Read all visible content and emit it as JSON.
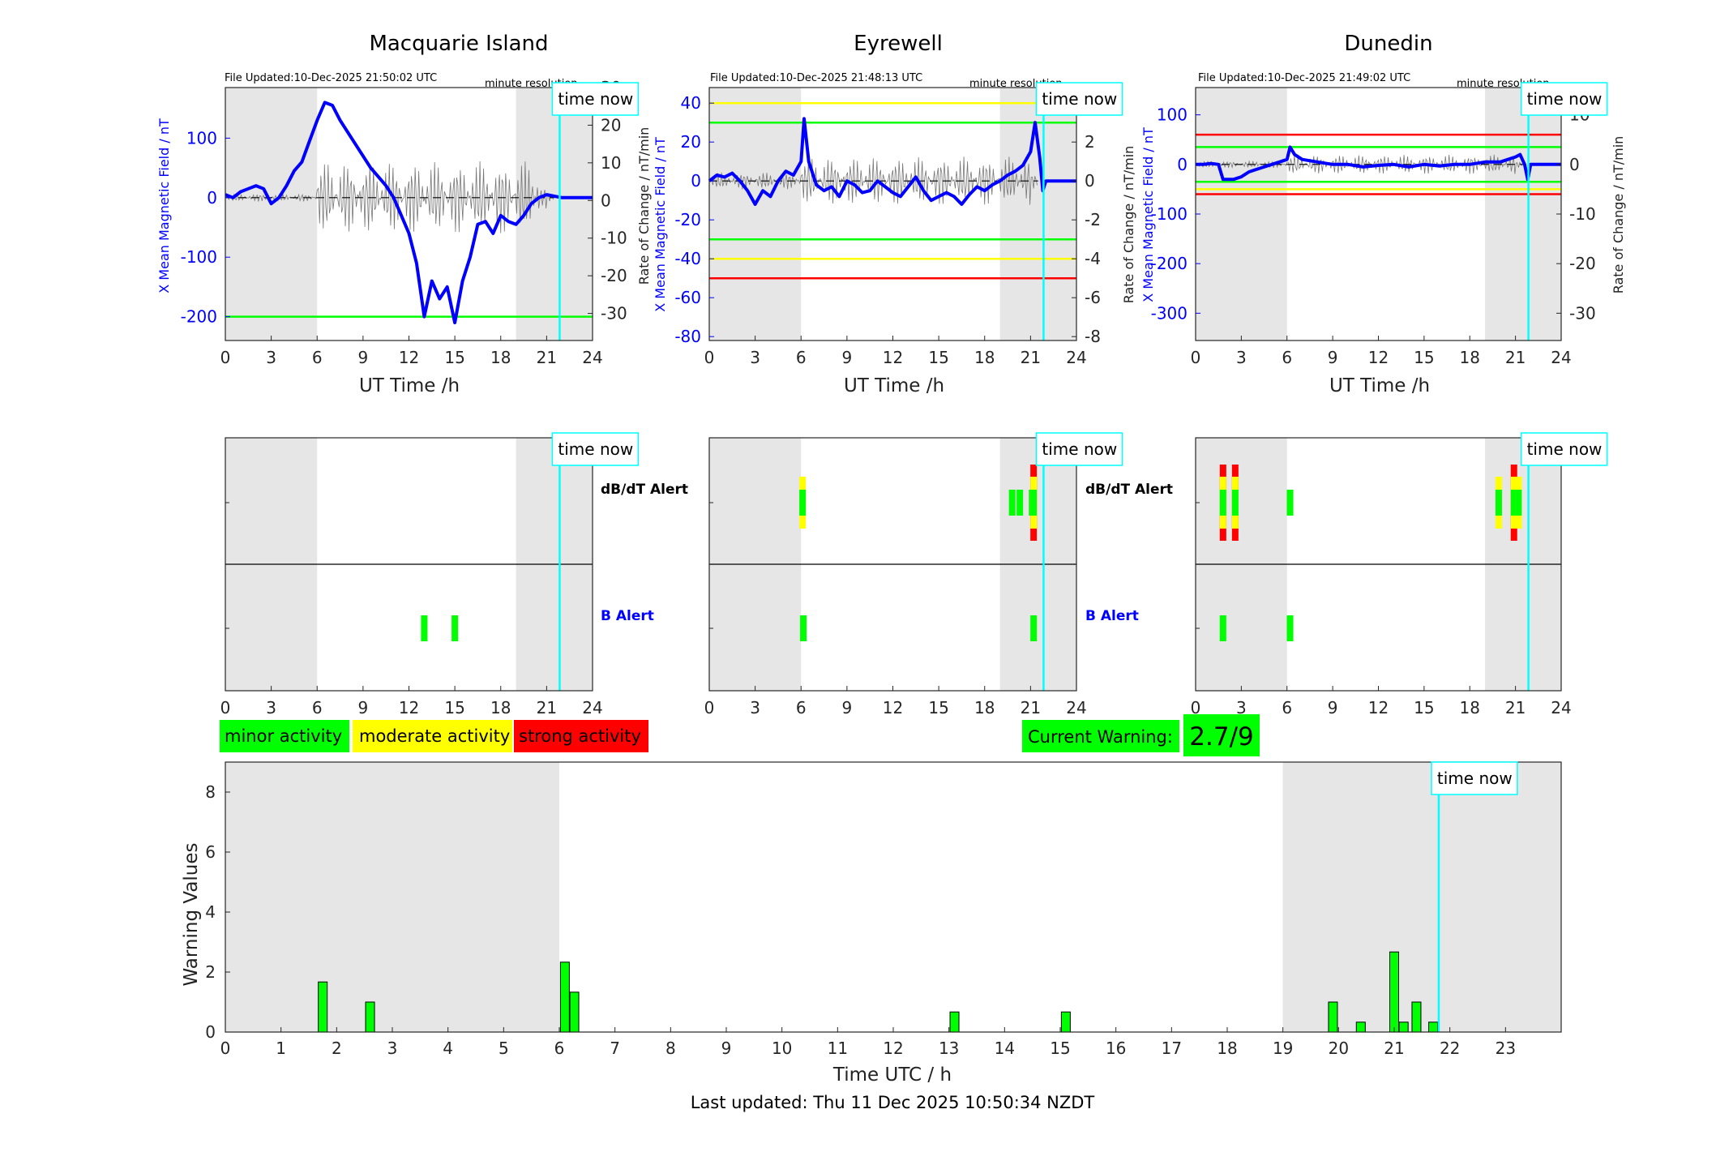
{
  "footer": {
    "last_updated": "Last updated: Thu 11 Dec 2025 10:50:34 NZDT"
  },
  "labels": {
    "time_now": "time now",
    "minute_resolution": "minute resolution",
    "ut_time": "UT Time /h",
    "y_left": "X Mean Magnetic Field / nT",
    "y_right": "Rate of Change / nT/min",
    "dbdt_alert": "dB/dT Alert",
    "b_alert": "B Alert"
  },
  "legend": {
    "minor": "minor activity",
    "moderate": "moderate activity",
    "strong": "strong activity",
    "current_warning_label": "Current Warning:",
    "current_warning_value": "2.7/9"
  },
  "colors": {
    "minor": "#00ff00",
    "moderate": "#ffff00",
    "strong": "#ff0000",
    "field_line": "#0000ff",
    "time_now_line": "#00ffff",
    "night_shade": "#e6e6e6"
  },
  "chart_data": [
    {
      "type": "line",
      "title": "Macquarie Island",
      "file_updated": "File Updated:10-Dec-2025 21:50:02 UTC",
      "xlabel": "UT Time /h",
      "ylabel": "X Mean Magnetic Field / nT",
      "ylabel_right": "Rate of Change / nT/min",
      "xlim": [
        0,
        24
      ],
      "ylim": [
        -240,
        185
      ],
      "ylim_right": [
        -37.2,
        30
      ],
      "yticks": [
        -200,
        -100,
        0,
        100
      ],
      "yticks_right": [
        -30,
        -20,
        -10,
        0,
        10,
        20,
        30
      ],
      "xticks": [
        0,
        3,
        6,
        9,
        12,
        15,
        18,
        21,
        24
      ],
      "night_shading": [
        [
          0,
          6
        ],
        [
          19,
          24
        ]
      ],
      "time_now": 21.85,
      "thresholds": [
        {
          "value": -200,
          "color": "green"
        }
      ],
      "series": [
        {
          "x": [
            0,
            0.5,
            1,
            1.5,
            2,
            2.5,
            3,
            3.5,
            4,
            4.5,
            5,
            5.5,
            6,
            6.5,
            7,
            7.5,
            8,
            8.5,
            9,
            9.5,
            10,
            10.5,
            11,
            11.5,
            12,
            12.5,
            13,
            13.5,
            14,
            14.5,
            15,
            15.5,
            16,
            16.5,
            17,
            17.5,
            18,
            18.5,
            19,
            19.5,
            20,
            20.5,
            21,
            22,
            24
          ],
          "y": [
            5,
            0,
            10,
            15,
            20,
            15,
            -10,
            0,
            20,
            45,
            60,
            95,
            130,
            160,
            155,
            130,
            110,
            90,
            70,
            50,
            35,
            20,
            0,
            -30,
            -60,
            -110,
            -200,
            -140,
            -170,
            -150,
            -210,
            -140,
            -100,
            -45,
            -40,
            -60,
            -30,
            -40,
            -45,
            -30,
            -10,
            0,
            5,
            0,
            0
          ]
        }
      ]
    },
    {
      "type": "line",
      "title": "Eyrewell",
      "file_updated": "File Updated:10-Dec-2025 21:48:13 UTC",
      "xlabel": "UT Time /h",
      "ylabel": "X Mean Magnetic Field / nT",
      "ylabel_right": "Rate of Change / nT/min",
      "xlim": [
        0,
        24
      ],
      "ylim": [
        -82,
        48
      ],
      "ylim_right": [
        -8.2,
        4.8
      ],
      "yticks": [
        -80,
        -60,
        -40,
        -20,
        0,
        20,
        40
      ],
      "yticks_right": [
        -8,
        -6,
        -4,
        -2,
        0,
        2,
        4
      ],
      "xticks": [
        0,
        3,
        6,
        9,
        12,
        15,
        18,
        21,
        24
      ],
      "night_shading": [
        [
          0,
          6
        ],
        [
          19,
          24
        ]
      ],
      "time_now": 21.85,
      "thresholds": [
        {
          "value": 40,
          "color": "yellow"
        },
        {
          "value": 30,
          "color": "green"
        },
        {
          "value": -30,
          "color": "green"
        },
        {
          "value": -40,
          "color": "yellow"
        },
        {
          "value": -50,
          "color": "red"
        }
      ],
      "series": [
        {
          "x": [
            0,
            0.5,
            1,
            1.5,
            2,
            2.5,
            3,
            3.5,
            4,
            4.5,
            5,
            5.5,
            6,
            6.2,
            6.5,
            7,
            7.5,
            8,
            8.5,
            9,
            9.5,
            10,
            10.5,
            11,
            11.5,
            12,
            12.5,
            13,
            13.5,
            14,
            14.5,
            15,
            15.5,
            16,
            16.5,
            17,
            17.5,
            18,
            18.5,
            19,
            19.5,
            20,
            20.5,
            21,
            21.3,
            21.6,
            21.8,
            22,
            24
          ],
          "y": [
            0,
            3,
            2,
            4,
            0,
            -5,
            -12,
            -5,
            -8,
            0,
            5,
            3,
            10,
            32,
            10,
            -2,
            -5,
            -3,
            -8,
            0,
            -2,
            -6,
            -5,
            0,
            -3,
            -6,
            -8,
            -3,
            2,
            -5,
            -10,
            -8,
            -6,
            -8,
            -12,
            -7,
            -3,
            -5,
            -2,
            0,
            3,
            5,
            8,
            15,
            30,
            12,
            -5,
            0,
            0
          ]
        }
      ]
    },
    {
      "type": "line",
      "title": "Dunedin",
      "file_updated": "File Updated:10-Dec-2025 21:49:02 UTC",
      "xlabel": "UT Time /h",
      "ylabel": "X Mean Magnetic Field / nT",
      "ylabel_right": "Rate of Change / nT/min",
      "xlim": [
        0,
        24
      ],
      "ylim": [
        -355,
        155
      ],
      "ylim_right": [
        -35.5,
        15.5
      ],
      "yticks": [
        -300,
        -200,
        -100,
        0,
        100
      ],
      "yticks_right": [
        -30,
        -20,
        -10,
        0,
        10
      ],
      "xticks": [
        0,
        3,
        6,
        9,
        12,
        15,
        18,
        21,
        24
      ],
      "night_shading": [
        [
          0,
          6
        ],
        [
          19,
          24
        ]
      ],
      "time_now": 21.85,
      "thresholds": [
        {
          "value": 60,
          "color": "red"
        },
        {
          "value": 35,
          "color": "green"
        },
        {
          "value": -35,
          "color": "green"
        },
        {
          "value": -50,
          "color": "yellow"
        },
        {
          "value": -60,
          "color": "red"
        }
      ],
      "series": [
        {
          "x": [
            0,
            0.5,
            1,
            1.5,
            1.8,
            2.5,
            3,
            3.5,
            4,
            4.5,
            5,
            5.5,
            6,
            6.2,
            6.5,
            7,
            8,
            9,
            10,
            11,
            12,
            13,
            14,
            15,
            16,
            17,
            18,
            19,
            20,
            20.5,
            21,
            21.3,
            21.6,
            21.8,
            22,
            24
          ],
          "y": [
            0,
            0,
            2,
            0,
            -30,
            -30,
            -25,
            -15,
            -10,
            -5,
            0,
            5,
            10,
            35,
            20,
            10,
            5,
            0,
            0,
            -5,
            -2,
            0,
            -5,
            0,
            -3,
            0,
            0,
            5,
            5,
            10,
            15,
            20,
            0,
            -30,
            0,
            0
          ]
        }
      ]
    },
    {
      "type": "bar",
      "title": "",
      "xlabel": "Time UTC / h",
      "ylabel": "Warning Values",
      "xlim": [
        0,
        24
      ],
      "ylim": [
        0,
        9
      ],
      "yticks": [
        0,
        2,
        4,
        6,
        8
      ],
      "xticks": [
        0,
        1,
        2,
        3,
        4,
        5,
        6,
        7,
        8,
        9,
        10,
        11,
        12,
        13,
        14,
        15,
        16,
        17,
        18,
        19,
        20,
        21,
        22,
        23
      ],
      "night_shading": [
        [
          0,
          6
        ],
        [
          19,
          24
        ]
      ],
      "time_now": 21.8,
      "bars": [
        {
          "x": 1.75,
          "value": 1.67
        },
        {
          "x": 2.6,
          "value": 1.0
        },
        {
          "x": 6.1,
          "value": 2.33
        },
        {
          "x": 6.27,
          "value": 1.33
        },
        {
          "x": 13.1,
          "value": 0.67
        },
        {
          "x": 15.1,
          "value": 0.67
        },
        {
          "x": 19.9,
          "value": 1.0
        },
        {
          "x": 20.4,
          "value": 0.33
        },
        {
          "x": 21.0,
          "value": 2.67
        },
        {
          "x": 21.17,
          "value": 0.33
        },
        {
          "x": 21.4,
          "value": 1.0
        },
        {
          "x": 21.7,
          "value": 0.33
        }
      ]
    }
  ],
  "alerts": [
    {
      "station": "Macquarie Island",
      "dbdt": [],
      "b": [
        {
          "x": 13.0,
          "levels": [
            "green"
          ]
        },
        {
          "x": 15.0,
          "levels": [
            "green"
          ]
        }
      ]
    },
    {
      "station": "Eyrewell",
      "dbdt": [
        {
          "x": 6.1,
          "levels": [
            "green",
            "yellow"
          ]
        },
        {
          "x": 19.8,
          "levels": [
            "green"
          ]
        },
        {
          "x": 20.3,
          "levels": [
            "green"
          ]
        },
        {
          "x": 21.1,
          "levels": [
            "green"
          ]
        },
        {
          "x": 21.2,
          "levels": [
            "green",
            "yellow",
            "red"
          ]
        }
      ],
      "b": [
        {
          "x": 6.15,
          "levels": [
            "green"
          ]
        },
        {
          "x": 21.2,
          "levels": [
            "green"
          ]
        }
      ]
    },
    {
      "station": "Dunedin",
      "dbdt": [
        {
          "x": 1.8,
          "levels": [
            "green",
            "yellow",
            "red"
          ]
        },
        {
          "x": 2.6,
          "levels": [
            "green",
            "yellow",
            "red"
          ]
        },
        {
          "x": 6.2,
          "levels": [
            "green"
          ]
        },
        {
          "x": 19.9,
          "levels": [
            "green",
            "yellow"
          ]
        },
        {
          "x": 20.9,
          "levels": [
            "green",
            "yellow",
            "red"
          ]
        },
        {
          "x": 21.2,
          "levels": [
            "green",
            "yellow"
          ]
        }
      ],
      "b": [
        {
          "x": 1.8,
          "levels": [
            "green"
          ]
        },
        {
          "x": 6.2,
          "levels": [
            "green"
          ]
        }
      ]
    }
  ]
}
